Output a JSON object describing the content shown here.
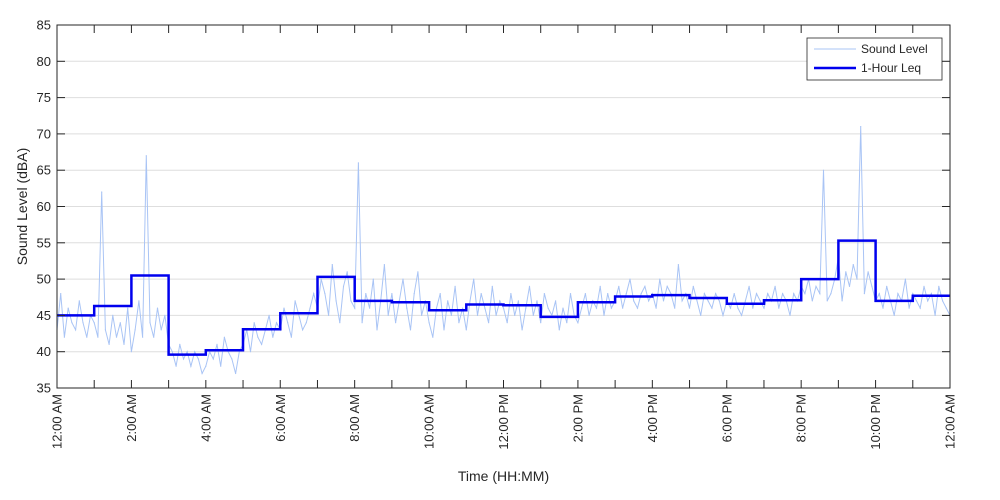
{
  "chart_data": {
    "type": "line",
    "xlabel": "Time (HH:MM)",
    "ylabel": "Sound Level (dBA)",
    "xlim": [
      0,
      24
    ],
    "ylim": [
      35,
      85
    ],
    "grid": "horizontal",
    "legend_position": "top-right",
    "y_ticks": [
      35,
      40,
      45,
      50,
      55,
      60,
      65,
      70,
      75,
      80,
      85
    ],
    "x_ticks": [
      0,
      1,
      2,
      3,
      4,
      5,
      6,
      7,
      8,
      9,
      10,
      11,
      12,
      13,
      14,
      15,
      16,
      17,
      18,
      19,
      20,
      21,
      22,
      23,
      24
    ],
    "x_tick_labels": [
      {
        "x": 0,
        "label": "12:00 AM"
      },
      {
        "x": 2,
        "label": "2:00 AM"
      },
      {
        "x": 4,
        "label": "4:00 AM"
      },
      {
        "x": 6,
        "label": "6:00 AM"
      },
      {
        "x": 8,
        "label": "8:00 AM"
      },
      {
        "x": 10,
        "label": "10:00 AM"
      },
      {
        "x": 12,
        "label": "12:00 PM"
      },
      {
        "x": 14,
        "label": "2:00 PM"
      },
      {
        "x": 16,
        "label": "4:00 PM"
      },
      {
        "x": 18,
        "label": "6:00 PM"
      },
      {
        "x": 20,
        "label": "8:00 PM"
      },
      {
        "x": 22,
        "label": "10:00 PM"
      },
      {
        "x": 24,
        "label": "12:00 AM"
      }
    ],
    "series": [
      {
        "name": "Sound Level",
        "color": "#a9c4f5",
        "style": "thin-line",
        "x": [
          0,
          0.1,
          0.2,
          0.3,
          0.4,
          0.5,
          0.6,
          0.7,
          0.8,
          0.9,
          1.0,
          1.1,
          1.2,
          1.3,
          1.4,
          1.5,
          1.6,
          1.7,
          1.8,
          1.9,
          2.0,
          2.1,
          2.2,
          2.3,
          2.4,
          2.5,
          2.6,
          2.7,
          2.8,
          2.9,
          3.0,
          3.1,
          3.2,
          3.3,
          3.4,
          3.5,
          3.6,
          3.7,
          3.8,
          3.9,
          4.0,
          4.1,
          4.2,
          4.3,
          4.4,
          4.5,
          4.6,
          4.7,
          4.8,
          4.9,
          5.0,
          5.1,
          5.2,
          5.3,
          5.4,
          5.5,
          5.6,
          5.7,
          5.8,
          5.9,
          6.0,
          6.1,
          6.2,
          6.3,
          6.4,
          6.5,
          6.6,
          6.7,
          6.8,
          6.9,
          7.0,
          7.1,
          7.2,
          7.3,
          7.4,
          7.5,
          7.6,
          7.7,
          7.8,
          7.9,
          8.0,
          8.1,
          8.2,
          8.3,
          8.4,
          8.5,
          8.6,
          8.7,
          8.8,
          8.9,
          9.0,
          9.1,
          9.2,
          9.3,
          9.4,
          9.5,
          9.6,
          9.7,
          9.8,
          9.9,
          10.0,
          10.1,
          10.2,
          10.3,
          10.4,
          10.5,
          10.6,
          10.7,
          10.8,
          10.9,
          11.0,
          11.1,
          11.2,
          11.3,
          11.4,
          11.5,
          11.6,
          11.7,
          11.8,
          11.9,
          12.0,
          12.1,
          12.2,
          12.3,
          12.4,
          12.5,
          12.6,
          12.7,
          12.8,
          12.9,
          13.0,
          13.1,
          13.2,
          13.3,
          13.4,
          13.5,
          13.6,
          13.7,
          13.8,
          13.9,
          14.0,
          14.1,
          14.2,
          14.3,
          14.4,
          14.5,
          14.6,
          14.7,
          14.8,
          14.9,
          15.0,
          15.1,
          15.2,
          15.3,
          15.4,
          15.5,
          15.6,
          15.7,
          15.8,
          15.9,
          16.0,
          16.1,
          16.2,
          16.3,
          16.4,
          16.5,
          16.6,
          16.7,
          16.8,
          16.9,
          17.0,
          17.1,
          17.2,
          17.3,
          17.4,
          17.5,
          17.6,
          17.7,
          17.8,
          17.9,
          18.0,
          18.1,
          18.2,
          18.3,
          18.4,
          18.5,
          18.6,
          18.7,
          18.8,
          18.9,
          19.0,
          19.1,
          19.2,
          19.3,
          19.4,
          19.5,
          19.6,
          19.7,
          19.8,
          19.9,
          20.0,
          20.1,
          20.2,
          20.3,
          20.4,
          20.5,
          20.6,
          20.7,
          20.8,
          20.9,
          21.0,
          21.1,
          21.2,
          21.3,
          21.4,
          21.5,
          21.6,
          21.7,
          21.8,
          21.9,
          22.0,
          22.1,
          22.2,
          22.3,
          22.4,
          22.5,
          22.6,
          22.7,
          22.8,
          22.9,
          23.0,
          23.1,
          23.2,
          23.3,
          23.4,
          23.5,
          23.6,
          23.7,
          23.8,
          23.9,
          24.0
        ],
        "y": [
          43,
          48,
          42,
          46,
          44,
          43,
          47,
          44,
          42,
          45,
          44,
          42,
          62,
          43,
          41,
          45,
          42,
          44,
          41,
          46,
          40,
          43,
          47,
          42,
          67,
          44,
          42,
          46,
          43,
          45,
          41,
          40,
          38,
          41,
          39,
          40,
          38,
          40,
          39,
          37,
          38,
          40,
          39,
          41,
          38,
          42,
          40,
          39,
          37,
          40,
          41,
          43,
          40,
          44,
          42,
          41,
          43,
          45,
          42,
          44,
          43,
          46,
          44,
          42,
          47,
          45,
          43,
          44,
          46,
          48,
          46,
          50,
          48,
          45,
          52,
          47,
          44,
          49,
          51,
          47,
          46,
          66,
          44,
          48,
          46,
          50,
          43,
          47,
          52,
          45,
          48,
          44,
          47,
          50,
          46,
          43,
          48,
          51,
          45,
          47,
          44,
          42,
          46,
          48,
          43,
          47,
          45,
          49,
          44,
          46,
          43,
          47,
          50,
          45,
          48,
          46,
          44,
          49,
          45,
          47,
          46,
          44,
          48,
          45,
          47,
          43,
          46,
          49,
          45,
          47,
          44,
          48,
          46,
          45,
          47,
          43,
          46,
          44,
          48,
          45,
          44,
          46,
          48,
          45,
          47,
          46,
          49,
          45,
          48,
          46,
          47,
          49,
          46,
          48,
          50,
          47,
          46,
          48,
          49,
          47,
          48,
          46,
          50,
          47,
          49,
          48,
          46,
          52,
          47,
          48,
          46,
          49,
          47,
          45,
          48,
          47,
          46,
          48,
          47,
          45,
          47,
          46,
          48,
          46,
          45,
          47,
          49,
          46,
          48,
          47,
          46,
          48,
          47,
          49,
          46,
          48,
          47,
          45,
          48,
          47,
          49,
          48,
          50,
          47,
          49,
          48,
          65,
          47,
          48,
          50,
          53,
          47,
          51,
          49,
          52,
          50,
          71,
          48,
          51,
          49,
          47,
          48,
          46,
          49,
          47,
          45,
          48,
          47,
          50,
          46,
          48,
          47,
          46,
          49,
          47,
          48,
          45,
          49,
          47,
          46,
          45
        ]
      },
      {
        "name": "1-Hour Leq",
        "color": "#0000ee",
        "style": "step",
        "hourly_values": [
          45.0,
          46.3,
          50.5,
          39.6,
          40.2,
          43.1,
          45.3,
          50.3,
          47.0,
          46.8,
          45.7,
          46.5,
          46.4,
          44.8,
          46.8,
          47.6,
          47.8,
          47.4,
          46.6,
          47.1,
          50.0,
          55.3,
          47.0,
          47.7
        ]
      }
    ]
  }
}
